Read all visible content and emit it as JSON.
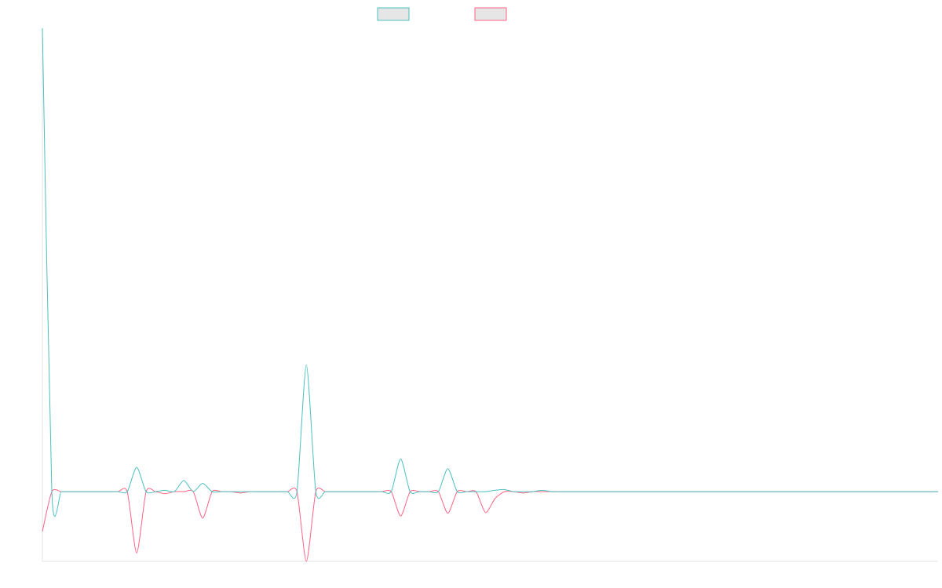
{
  "chart_data": {
    "type": "line",
    "title": "",
    "xlabel": "",
    "ylabel": "",
    "ylim": [
      -100,
      665
    ],
    "grid": false,
    "legend": "top-center",
    "x": [
      0,
      1,
      2,
      3,
      4,
      5,
      6,
      7,
      8,
      9,
      10,
      11,
      12,
      13,
      14,
      15,
      16,
      17,
      18,
      19,
      20,
      21,
      22,
      23,
      24,
      25,
      26,
      27,
      28,
      29,
      30,
      31,
      32,
      33,
      34,
      35,
      36,
      37,
      38,
      39,
      40,
      41,
      42,
      43,
      44,
      45,
      46,
      47,
      48,
      49,
      50,
      51,
      52,
      53,
      54,
      55,
      56,
      57,
      58,
      59,
      60,
      61,
      62,
      63,
      64,
      65,
      66,
      67,
      68,
      69,
      70,
      71,
      72,
      73,
      74,
      75,
      76,
      77,
      78,
      79,
      80,
      81,
      82,
      83,
      84,
      85,
      86,
      87,
      88,
      89,
      90,
      91,
      92,
      93,
      94,
      95
    ],
    "series": [
      {
        "name": "",
        "color": "#4bc0c0",
        "values": [
          665,
          0,
          0,
          0,
          0,
          0,
          0,
          0,
          0,
          0,
          35,
          0,
          0,
          2,
          0,
          16,
          0,
          12,
          0,
          0,
          0,
          0,
          0,
          0,
          0,
          0,
          0,
          0,
          182,
          0,
          0,
          0,
          0,
          0,
          0,
          0,
          0,
          0,
          47,
          0,
          0,
          0,
          0,
          33,
          0,
          0,
          0,
          0,
          2,
          3,
          0,
          0,
          0,
          2,
          0,
          0,
          0,
          0,
          0,
          0,
          0,
          0,
          0,
          0,
          0,
          0,
          0,
          0,
          0,
          0,
          0,
          0,
          0,
          0,
          0,
          0,
          0,
          0,
          0,
          0,
          0,
          0,
          0,
          0,
          0,
          0,
          0,
          0,
          0,
          0,
          0,
          0,
          0,
          0,
          0,
          0
        ]
      },
      {
        "name": "",
        "color": "#ff6384",
        "values": [
          -57,
          0,
          0,
          0,
          0,
          0,
          0,
          0,
          0,
          0,
          -88,
          0,
          0,
          -3,
          0,
          0,
          0,
          -38,
          0,
          0,
          0,
          -2,
          0,
          0,
          0,
          0,
          0,
          0,
          -100,
          0,
          0,
          0,
          0,
          0,
          0,
          0,
          0,
          0,
          -35,
          0,
          0,
          0,
          0,
          -31,
          0,
          0,
          0,
          -30,
          -10,
          0,
          0,
          -2,
          0,
          0,
          0,
          0,
          0,
          0,
          0,
          0,
          0,
          0,
          0,
          0,
          0,
          0,
          0,
          0,
          0,
          0,
          0,
          0,
          0,
          0,
          0,
          0,
          0,
          0,
          0,
          0,
          0,
          0,
          0,
          0,
          0,
          0,
          0,
          0,
          0,
          0,
          0,
          0,
          0,
          0,
          0,
          0
        ]
      }
    ]
  }
}
